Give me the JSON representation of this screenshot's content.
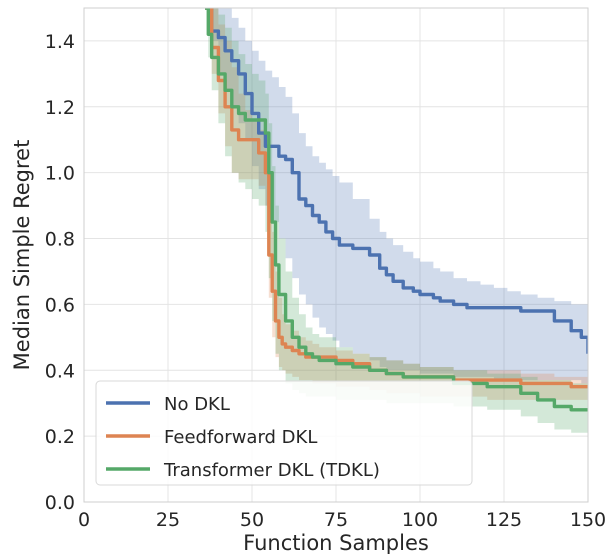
{
  "chart_data": {
    "type": "line",
    "title": "",
    "xlabel": "Function Samples",
    "ylabel": "Median Simple Regret",
    "xlim": [
      0,
      150
    ],
    "ylim": [
      0.0,
      1.5
    ],
    "grid": true,
    "legend_position": "bottom-left",
    "x_ticks": [
      {
        "value": 0,
        "label": "0"
      },
      {
        "value": 25,
        "label": "25"
      },
      {
        "value": 50,
        "label": "50"
      },
      {
        "value": 75,
        "label": "75"
      },
      {
        "value": 100,
        "label": "100"
      },
      {
        "value": 125,
        "label": "125"
      },
      {
        "value": 150,
        "label": "150"
      }
    ],
    "y_ticks": [
      {
        "value": 0.0,
        "label": "0.0"
      },
      {
        "value": 0.2,
        "label": "0.2"
      },
      {
        "value": 0.4,
        "label": "0.4"
      },
      {
        "value": 0.6,
        "label": "0.6"
      },
      {
        "value": 0.8,
        "label": "0.8"
      },
      {
        "value": 1.0,
        "label": "1.0"
      },
      {
        "value": 1.2,
        "label": "1.2"
      },
      {
        "value": 1.4,
        "label": "1.4"
      }
    ],
    "series": [
      {
        "name": "No DKL",
        "color": "#4c72b0",
        "x": [
          36,
          38,
          40,
          42,
          44,
          46,
          48,
          50,
          52,
          54,
          56,
          58,
          60,
          62,
          64,
          66,
          68,
          70,
          72,
          74,
          76,
          80,
          85,
          88,
          90,
          92,
          95,
          98,
          100,
          104,
          106,
          110,
          114,
          118,
          122,
          126,
          130,
          135,
          140,
          145,
          148,
          150
        ],
        "y": [
          1.5,
          1.43,
          1.41,
          1.37,
          1.34,
          1.3,
          1.24,
          1.18,
          1.12,
          1.08,
          1.08,
          1.05,
          1.04,
          1.0,
          0.92,
          0.9,
          0.87,
          0.85,
          0.82,
          0.8,
          0.78,
          0.77,
          0.75,
          0.71,
          0.69,
          0.67,
          0.65,
          0.64,
          0.63,
          0.62,
          0.61,
          0.6,
          0.59,
          0.59,
          0.59,
          0.59,
          0.58,
          0.58,
          0.55,
          0.52,
          0.5,
          0.45
        ],
        "lower": [
          1.5,
          1.4,
          1.3,
          1.25,
          1.2,
          1.15,
          1.1,
          1.02,
          0.95,
          0.9,
          0.85,
          0.8,
          0.74,
          0.68,
          0.63,
          0.6,
          0.56,
          0.53,
          0.51,
          0.49,
          0.47,
          0.45,
          0.43,
          0.41,
          0.4,
          0.4,
          0.4,
          0.4,
          0.39,
          0.39,
          0.39,
          0.38,
          0.38,
          0.38,
          0.37,
          0.37,
          0.37,
          0.37,
          0.37,
          0.37,
          0.36,
          0.36
        ],
        "upper": [
          1.5,
          1.5,
          1.5,
          1.5,
          1.47,
          1.44,
          1.4,
          1.37,
          1.34,
          1.31,
          1.29,
          1.26,
          1.23,
          1.18,
          1.12,
          1.08,
          1.05,
          1.03,
          1.01,
          0.99,
          0.97,
          0.92,
          0.86,
          0.82,
          0.8,
          0.78,
          0.76,
          0.74,
          0.73,
          0.71,
          0.7,
          0.68,
          0.67,
          0.66,
          0.65,
          0.64,
          0.63,
          0.62,
          0.61,
          0.6,
          0.6,
          0.6
        ]
      },
      {
        "name": "Feedforward DKL",
        "color": "#dd8452",
        "x": [
          36,
          38,
          40,
          42,
          44,
          46,
          48,
          50,
          52,
          54,
          55,
          56,
          57,
          58,
          59,
          60,
          62,
          64,
          66,
          68,
          70,
          75,
          80,
          85,
          90,
          95,
          100,
          110,
          120,
          130,
          140,
          145,
          150
        ],
        "y": [
          1.5,
          1.38,
          1.28,
          1.2,
          1.13,
          1.1,
          1.1,
          1.1,
          1.06,
          1.0,
          0.75,
          0.64,
          0.55,
          0.5,
          0.48,
          0.47,
          0.46,
          0.45,
          0.44,
          0.44,
          0.44,
          0.43,
          0.42,
          0.4,
          0.39,
          0.38,
          0.38,
          0.37,
          0.37,
          0.36,
          0.36,
          0.35,
          0.35
        ],
        "lower": [
          1.5,
          1.3,
          1.18,
          1.08,
          1.0,
          0.98,
          0.98,
          0.98,
          0.96,
          0.9,
          0.62,
          0.5,
          0.44,
          0.41,
          0.4,
          0.39,
          0.38,
          0.37,
          0.37,
          0.36,
          0.36,
          0.35,
          0.35,
          0.34,
          0.33,
          0.33,
          0.32,
          0.32,
          0.31,
          0.31,
          0.31,
          0.31,
          0.31
        ],
        "upper": [
          1.5,
          1.5,
          1.45,
          1.4,
          1.32,
          1.24,
          1.19,
          1.16,
          1.13,
          1.1,
          0.95,
          0.82,
          0.7,
          0.62,
          0.57,
          0.54,
          0.52,
          0.5,
          0.49,
          0.48,
          0.47,
          0.46,
          0.45,
          0.44,
          0.43,
          0.42,
          0.41,
          0.4,
          0.4,
          0.39,
          0.38,
          0.38,
          0.38
        ]
      },
      {
        "name": "Transformer DKL (TDKL)",
        "color": "#55a868",
        "x": [
          36,
          37,
          38,
          40,
          42,
          44,
          46,
          48,
          50,
          52,
          54,
          55,
          56,
          57,
          58,
          60,
          62,
          64,
          66,
          68,
          70,
          75,
          80,
          85,
          90,
          95,
          100,
          110,
          120,
          130,
          135,
          140,
          145,
          150
        ],
        "y": [
          1.5,
          1.42,
          1.35,
          1.3,
          1.25,
          1.2,
          1.18,
          1.16,
          1.16,
          1.16,
          1.12,
          1.0,
          0.85,
          0.72,
          0.63,
          0.55,
          0.5,
          0.47,
          0.45,
          0.44,
          0.43,
          0.42,
          0.41,
          0.4,
          0.39,
          0.38,
          0.38,
          0.36,
          0.35,
          0.33,
          0.31,
          0.29,
          0.28,
          0.28
        ],
        "lower": [
          1.5,
          1.35,
          1.25,
          1.15,
          1.05,
          1.0,
          0.97,
          0.95,
          0.92,
          0.9,
          0.82,
          0.68,
          0.55,
          0.45,
          0.4,
          0.36,
          0.34,
          0.33,
          0.32,
          0.32,
          0.32,
          0.31,
          0.31,
          0.31,
          0.3,
          0.3,
          0.3,
          0.29,
          0.28,
          0.26,
          0.24,
          0.22,
          0.21,
          0.2
        ],
        "upper": [
          1.5,
          1.5,
          1.5,
          1.48,
          1.44,
          1.4,
          1.36,
          1.33,
          1.3,
          1.28,
          1.24,
          1.15,
          1.02,
          0.9,
          0.8,
          0.7,
          0.62,
          0.57,
          0.53,
          0.51,
          0.5,
          0.47,
          0.45,
          0.44,
          0.43,
          0.42,
          0.41,
          0.4,
          0.39,
          0.38,
          0.37,
          0.37,
          0.36,
          0.36
        ]
      }
    ]
  }
}
